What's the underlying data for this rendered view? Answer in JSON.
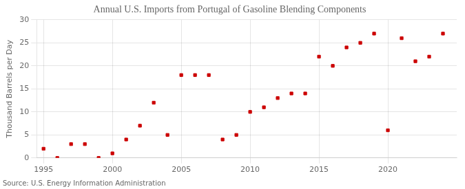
{
  "chart_data": {
    "type": "scatter",
    "title": "Annual U.S. Imports from Portugal of Gasoline Blending Components",
    "ylabel": "Thousand Barrels per Day",
    "annotation": "Source: U.S. Energy Information Administration",
    "x": [
      1995,
      1996,
      1997,
      1998,
      1999,
      2000,
      2001,
      2002,
      2003,
      2004,
      2005,
      2006,
      2007,
      2008,
      2009,
      2010,
      2011,
      2012,
      2013,
      2014,
      2015,
      2016,
      2017,
      2018,
      2019,
      2020,
      2021,
      2022,
      2023,
      2024
    ],
    "values": [
      2,
      0,
      3,
      3,
      0,
      1,
      4,
      7,
      12,
      5,
      18,
      18,
      18,
      4,
      5,
      10,
      11,
      13,
      14,
      14,
      22,
      20,
      24,
      25,
      27,
      6,
      26,
      21,
      22,
      27
    ],
    "color": "#cc0000",
    "marker": "square",
    "xlim": [
      1994.5,
      2025
    ],
    "xticks": [
      1995,
      2000,
      2005,
      2010,
      2015,
      2020
    ],
    "ylim": [
      0,
      30
    ],
    "yticks": [
      0,
      5,
      10,
      15,
      20,
      25,
      30
    ],
    "grid": true
  }
}
